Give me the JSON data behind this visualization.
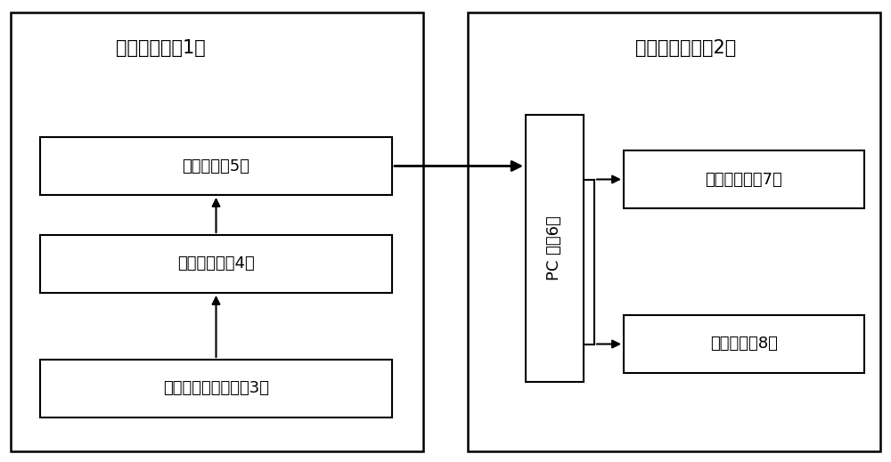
{
  "fig_width": 10.0,
  "fig_height": 5.19,
  "bg_color": "#ffffff",
  "box_fill": "#ffffff",
  "box_edge": "#000000",
  "text_color": "#000000",
  "title_left": "数据采集端（1）",
  "title_right": "物流信息平台（2）",
  "box3_label": "手持式数据采集器（3）",
  "box4_label": "设备转换器（4）",
  "box5_label": "微处理器（5）",
  "box6_label": "PC 机（6）",
  "box7_label": "数据服务器（7）",
  "box8_label": "输出设备（8）",
  "font_size_title": 15,
  "font_size_box": 13,
  "lw_outer": 1.8,
  "lw_inner": 1.5
}
